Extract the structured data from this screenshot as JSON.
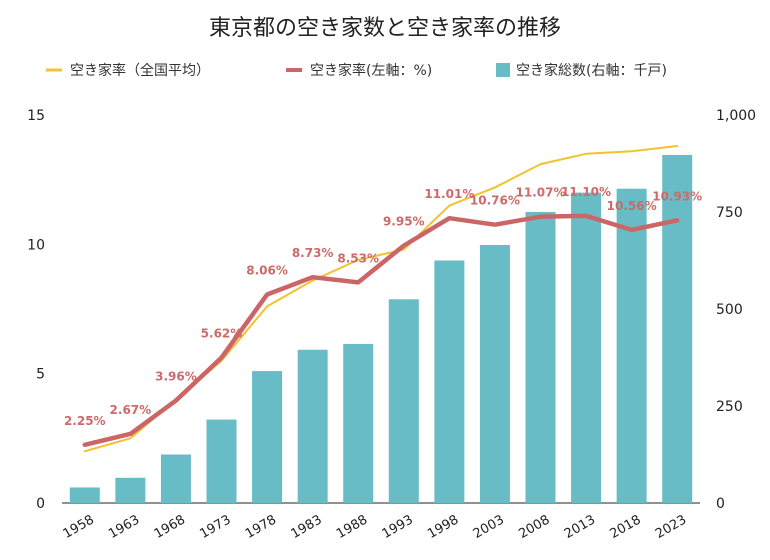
{
  "chart_data": {
    "type": "bar+line",
    "title": "東京都の空き家数と空き家率の推移",
    "categories": [
      "1958",
      "1963",
      "1968",
      "1973",
      "1978",
      "1983",
      "1988",
      "1993",
      "1998",
      "2003",
      "2008",
      "2013",
      "2018",
      "2023"
    ],
    "series": [
      {
        "name": "空き家総数(右軸：千戸)",
        "type": "bar",
        "axis": "right",
        "color": "#68bcc5",
        "values": [
          40,
          65,
          125,
          215,
          340,
          395,
          410,
          525,
          625,
          665,
          750,
          800,
          810,
          897
        ]
      },
      {
        "name": "空き家率(左軸：%)",
        "type": "line",
        "axis": "left",
        "color": "#cc6666",
        "values": [
          2.25,
          2.67,
          3.96,
          5.62,
          8.06,
          8.73,
          8.53,
          9.95,
          11.01,
          10.76,
          11.07,
          11.1,
          10.56,
          10.93
        ],
        "data_labels": [
          "2.25%",
          "2.67%",
          "3.96%",
          "5.62%",
          "8.06%",
          "8.73%",
          "8.53%",
          "9.95%",
          "11.01%",
          "10.76%",
          "11.07%",
          "11.10%",
          "10.56%",
          "10.93%"
        ]
      },
      {
        "name": "空き家率（全国平均）",
        "type": "line",
        "axis": "left",
        "color": "#f2c230",
        "values": [
          2.0,
          2.5,
          4.0,
          5.5,
          7.6,
          8.6,
          9.4,
          9.8,
          11.5,
          12.2,
          13.1,
          13.5,
          13.6,
          13.8
        ]
      }
    ],
    "left_axis": {
      "min": 0,
      "max": 15,
      "ticks": [
        0,
        5,
        10,
        15
      ],
      "tick_labels": [
        "0",
        "5",
        "10",
        "15"
      ]
    },
    "right_axis": {
      "min": 0,
      "max": 1000,
      "ticks": [
        0,
        250,
        500,
        750,
        1000
      ],
      "tick_labels": [
        "0",
        "250",
        "500",
        "750",
        "1,000"
      ]
    },
    "legend_position": "top",
    "grid": false
  }
}
